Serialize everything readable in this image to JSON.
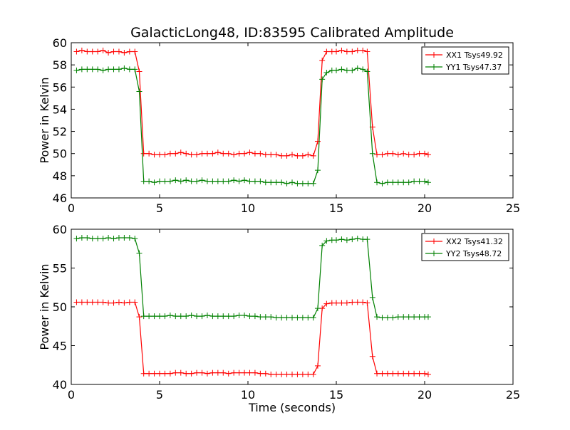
{
  "figure": {
    "title": "GalacticLong48, ID:83595 Calibrated Amplitude"
  },
  "colors": {
    "xx": "#ff0000",
    "yy": "#008000"
  },
  "chart_data": [
    {
      "type": "line",
      "title": "GalacticLong48, ID:83595 Calibrated Amplitude",
      "xlabel": "",
      "ylabel": "Power in Kelvin",
      "xlim": [
        0,
        25
      ],
      "ylim": [
        46,
        60
      ],
      "xticks": [
        "0",
        "5",
        "10",
        "15",
        "20",
        "25"
      ],
      "yticks": [
        "46",
        "48",
        "50",
        "52",
        "54",
        "56",
        "58",
        "60"
      ],
      "legend_position": "top-right",
      "series": [
        {
          "name": "XX1 Tsys49.92",
          "color": "#ff0000",
          "x": [
            0.3,
            0.6,
            0.9,
            1.2,
            1.5,
            1.8,
            2.1,
            2.4,
            2.7,
            3.0,
            3.3,
            3.6,
            3.85,
            4.1,
            4.4,
            4.7,
            5.0,
            5.3,
            5.6,
            5.9,
            6.2,
            6.5,
            6.8,
            7.1,
            7.4,
            7.7,
            8.0,
            8.3,
            8.6,
            8.9,
            9.2,
            9.5,
            9.8,
            10.1,
            10.4,
            10.7,
            11.0,
            11.3,
            11.6,
            11.9,
            12.2,
            12.5,
            12.8,
            13.1,
            13.4,
            13.7,
            13.95,
            14.2,
            14.45,
            14.75,
            15.0,
            15.3,
            15.6,
            15.9,
            16.2,
            16.5,
            16.75,
            17.05,
            17.3,
            17.6,
            17.9,
            18.2,
            18.5,
            18.8,
            19.1,
            19.4,
            19.7,
            20.0,
            20.2
          ],
          "values": [
            59.2,
            59.3,
            59.2,
            59.2,
            59.2,
            59.3,
            59.1,
            59.2,
            59.2,
            59.1,
            59.2,
            59.2,
            57.4,
            50.0,
            50.0,
            49.9,
            49.9,
            49.9,
            50.0,
            50.0,
            50.1,
            50.0,
            49.9,
            49.9,
            50.0,
            50.0,
            50.0,
            50.1,
            50.0,
            50.0,
            49.9,
            50.0,
            50.0,
            50.1,
            50.0,
            50.0,
            49.9,
            49.9,
            49.9,
            49.8,
            49.8,
            49.9,
            49.8,
            49.8,
            49.9,
            49.8,
            51.1,
            58.4,
            59.2,
            59.2,
            59.2,
            59.3,
            59.2,
            59.2,
            59.3,
            59.3,
            59.2,
            52.4,
            49.9,
            49.9,
            50.0,
            50.0,
            49.9,
            50.0,
            49.9,
            49.9,
            50.0,
            50.0,
            49.9
          ]
        },
        {
          "name": "YY1 Tsys47.37",
          "color": "#008000",
          "x": [
            0.3,
            0.6,
            0.9,
            1.2,
            1.5,
            1.8,
            2.1,
            2.4,
            2.7,
            3.0,
            3.3,
            3.6,
            3.85,
            4.1,
            4.4,
            4.7,
            5.0,
            5.3,
            5.6,
            5.9,
            6.2,
            6.5,
            6.8,
            7.1,
            7.4,
            7.7,
            8.0,
            8.3,
            8.6,
            8.9,
            9.2,
            9.5,
            9.8,
            10.1,
            10.4,
            10.7,
            11.0,
            11.3,
            11.6,
            11.9,
            12.2,
            12.5,
            12.8,
            13.1,
            13.4,
            13.7,
            13.95,
            14.2,
            14.45,
            14.75,
            15.0,
            15.3,
            15.6,
            15.9,
            16.2,
            16.5,
            16.75,
            17.05,
            17.3,
            17.6,
            17.9,
            18.2,
            18.5,
            18.8,
            19.1,
            19.4,
            19.7,
            20.0,
            20.2
          ],
          "values": [
            57.5,
            57.6,
            57.6,
            57.6,
            57.6,
            57.5,
            57.6,
            57.6,
            57.6,
            57.7,
            57.6,
            57.6,
            55.6,
            47.5,
            47.5,
            47.4,
            47.5,
            47.5,
            47.5,
            47.6,
            47.5,
            47.6,
            47.5,
            47.5,
            47.6,
            47.5,
            47.5,
            47.5,
            47.5,
            47.5,
            47.6,
            47.5,
            47.6,
            47.5,
            47.5,
            47.5,
            47.4,
            47.4,
            47.4,
            47.4,
            47.3,
            47.4,
            47.3,
            47.3,
            47.3,
            47.3,
            48.5,
            56.7,
            57.3,
            57.5,
            57.5,
            57.6,
            57.5,
            57.5,
            57.7,
            57.6,
            57.4,
            50.0,
            47.4,
            47.3,
            47.4,
            47.4,
            47.4,
            47.4,
            47.4,
            47.5,
            47.5,
            47.5,
            47.4
          ]
        }
      ]
    },
    {
      "type": "line",
      "title": "",
      "xlabel": "Time (seconds)",
      "ylabel": "Power in Kelvin",
      "xlim": [
        0,
        25
      ],
      "ylim": [
        40,
        60
      ],
      "xticks": [
        "0",
        "5",
        "10",
        "15",
        "20",
        "25"
      ],
      "yticks": [
        "40",
        "45",
        "50",
        "55",
        "60"
      ],
      "legend_position": "top-right",
      "series": [
        {
          "name": "XX2 Tsys41.32",
          "color": "#ff0000",
          "x": [
            0.3,
            0.6,
            0.9,
            1.2,
            1.5,
            1.8,
            2.1,
            2.4,
            2.7,
            3.0,
            3.3,
            3.6,
            3.85,
            4.1,
            4.4,
            4.7,
            5.0,
            5.3,
            5.6,
            5.9,
            6.2,
            6.5,
            6.8,
            7.1,
            7.4,
            7.7,
            8.0,
            8.3,
            8.6,
            8.9,
            9.2,
            9.5,
            9.8,
            10.1,
            10.4,
            10.7,
            11.0,
            11.3,
            11.6,
            11.9,
            12.2,
            12.5,
            12.8,
            13.1,
            13.4,
            13.7,
            13.95,
            14.2,
            14.45,
            14.75,
            15.0,
            15.3,
            15.6,
            15.9,
            16.2,
            16.5,
            16.75,
            17.05,
            17.3,
            17.6,
            17.9,
            18.2,
            18.5,
            18.8,
            19.1,
            19.4,
            19.7,
            20.0,
            20.2
          ],
          "values": [
            50.6,
            50.6,
            50.6,
            50.6,
            50.6,
            50.6,
            50.5,
            50.5,
            50.6,
            50.5,
            50.6,
            50.6,
            48.7,
            41.4,
            41.4,
            41.4,
            41.4,
            41.4,
            41.4,
            41.5,
            41.5,
            41.4,
            41.4,
            41.5,
            41.5,
            41.4,
            41.5,
            41.5,
            41.5,
            41.4,
            41.5,
            41.5,
            41.5,
            41.5,
            41.5,
            41.4,
            41.4,
            41.3,
            41.3,
            41.3,
            41.3,
            41.3,
            41.3,
            41.3,
            41.3,
            41.3,
            42.4,
            49.8,
            50.4,
            50.5,
            50.5,
            50.5,
            50.5,
            50.6,
            50.6,
            50.6,
            50.5,
            43.6,
            41.4,
            41.4,
            41.4,
            41.4,
            41.4,
            41.4,
            41.4,
            41.4,
            41.4,
            41.4,
            41.3
          ]
        },
        {
          "name": "YY2 Tsys48.72",
          "color": "#008000",
          "x": [
            0.3,
            0.6,
            0.9,
            1.2,
            1.5,
            1.8,
            2.1,
            2.4,
            2.7,
            3.0,
            3.3,
            3.6,
            3.85,
            4.1,
            4.4,
            4.7,
            5.0,
            5.3,
            5.6,
            5.9,
            6.2,
            6.5,
            6.8,
            7.1,
            7.4,
            7.7,
            8.0,
            8.3,
            8.6,
            8.9,
            9.2,
            9.5,
            9.8,
            10.1,
            10.4,
            10.7,
            11.0,
            11.3,
            11.6,
            11.9,
            12.2,
            12.5,
            12.8,
            13.1,
            13.4,
            13.7,
            13.95,
            14.2,
            14.45,
            14.75,
            15.0,
            15.3,
            15.6,
            15.9,
            16.2,
            16.5,
            16.75,
            17.05,
            17.3,
            17.6,
            17.9,
            18.2,
            18.5,
            18.8,
            19.1,
            19.4,
            19.7,
            20.0,
            20.2
          ],
          "values": [
            58.8,
            58.9,
            58.9,
            58.8,
            58.8,
            58.8,
            58.9,
            58.8,
            58.9,
            58.9,
            58.9,
            58.8,
            56.9,
            48.8,
            48.8,
            48.8,
            48.8,
            48.8,
            48.9,
            48.8,
            48.8,
            48.8,
            48.9,
            48.8,
            48.8,
            48.9,
            48.8,
            48.8,
            48.8,
            48.8,
            48.8,
            48.9,
            48.9,
            48.8,
            48.8,
            48.7,
            48.7,
            48.7,
            48.6,
            48.6,
            48.6,
            48.6,
            48.6,
            48.6,
            48.6,
            48.6,
            49.8,
            57.9,
            58.5,
            58.6,
            58.6,
            58.7,
            58.6,
            58.7,
            58.8,
            58.7,
            58.7,
            51.2,
            48.7,
            48.6,
            48.6,
            48.6,
            48.7,
            48.7,
            48.7,
            48.7,
            48.7,
            48.7,
            48.7
          ]
        }
      ]
    }
  ]
}
